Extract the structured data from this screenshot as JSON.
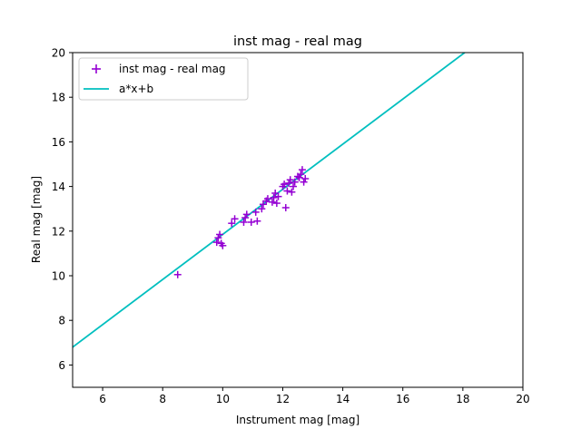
{
  "chart_data": {
    "type": "scatter",
    "title": "inst mag - real mag",
    "xlabel": "Instrument mag [mag]",
    "ylabel": "Real mag [mag]",
    "xlim": [
      5,
      20
    ],
    "ylim": [
      5,
      20
    ],
    "xticks": [
      6,
      8,
      10,
      12,
      14,
      16,
      18,
      20
    ],
    "yticks": [
      6,
      8,
      10,
      12,
      14,
      16,
      18,
      20
    ],
    "grid": false,
    "legend_position": "top-left",
    "series": [
      {
        "name": "inst mag - real mag",
        "kind": "scatter",
        "marker": "plus",
        "color": "#9400d3",
        "points": [
          [
            8.5,
            10.05
          ],
          [
            9.8,
            11.5
          ],
          [
            9.85,
            11.7
          ],
          [
            9.95,
            11.45
          ],
          [
            10.0,
            11.35
          ],
          [
            9.9,
            11.85
          ],
          [
            10.3,
            12.35
          ],
          [
            10.4,
            12.55
          ],
          [
            10.7,
            12.4
          ],
          [
            10.75,
            12.6
          ],
          [
            10.8,
            12.75
          ],
          [
            10.95,
            12.4
          ],
          [
            11.15,
            12.45
          ],
          [
            11.1,
            12.85
          ],
          [
            11.3,
            13.0
          ],
          [
            11.35,
            13.2
          ],
          [
            11.45,
            13.35
          ],
          [
            11.5,
            13.45
          ],
          [
            11.65,
            13.3
          ],
          [
            11.7,
            13.5
          ],
          [
            11.75,
            13.7
          ],
          [
            11.8,
            13.25
          ],
          [
            11.85,
            13.55
          ],
          [
            12.0,
            14.0
          ],
          [
            12.05,
            14.1
          ],
          [
            12.1,
            13.05
          ],
          [
            12.15,
            13.8
          ],
          [
            12.2,
            14.15
          ],
          [
            12.25,
            14.3
          ],
          [
            12.3,
            13.75
          ],
          [
            12.35,
            14.0
          ],
          [
            12.4,
            14.2
          ],
          [
            12.5,
            14.45
          ],
          [
            12.55,
            14.4
          ],
          [
            12.6,
            14.55
          ],
          [
            12.65,
            14.75
          ],
          [
            12.7,
            14.2
          ],
          [
            12.75,
            14.35
          ]
        ]
      },
      {
        "name": "a*x+b",
        "kind": "line",
        "color": "#00bfbf",
        "points": [
          [
            5.0,
            6.8
          ],
          [
            18.06,
            20.0
          ]
        ]
      }
    ]
  }
}
